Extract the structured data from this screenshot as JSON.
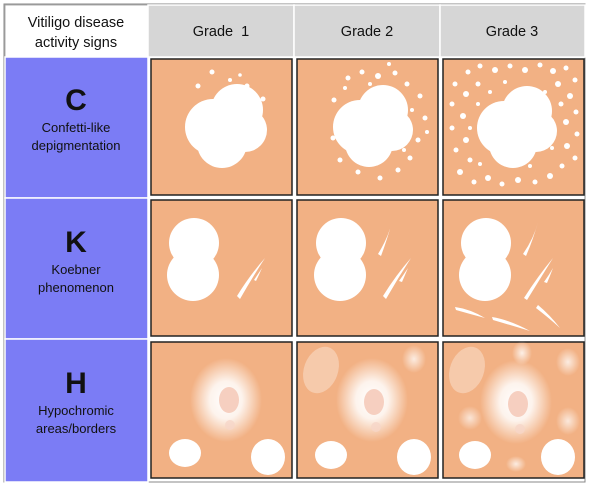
{
  "header": {
    "title_lines": [
      "Vitiligo disease",
      "activity signs"
    ],
    "grades": [
      "Grade  1",
      "Grade 2",
      "Grade 3"
    ]
  },
  "rows": [
    {
      "letter": "C",
      "label_lines": [
        "Confetti-like",
        "depigmentation"
      ]
    },
    {
      "letter": "K",
      "label_lines": [
        "Koebner",
        "phenomenon"
      ]
    },
    {
      "letter": "H",
      "label_lines": [
        "Hypochromic",
        "areas/borders"
      ]
    }
  ],
  "colors": {
    "skin": "#f2b184",
    "lesion": "#ffffff",
    "row_label_bg": "#7b7cf5",
    "header_bg": "#d6d6d6",
    "title_bg": "#ffffff",
    "border": "#222222"
  }
}
